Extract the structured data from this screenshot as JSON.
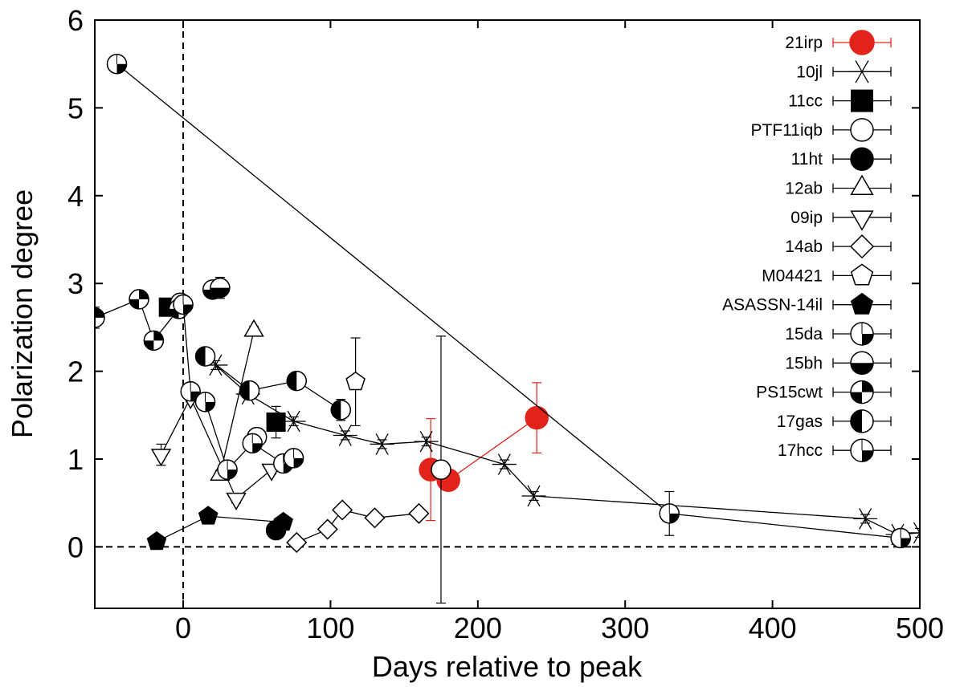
{
  "chart_data": {
    "type": "scatter",
    "xlabel": "Days relative to peak",
    "ylabel": "Polarization degree",
    "xlim": [
      -60,
      500
    ],
    "ylim": [
      -0.7,
      6
    ],
    "xticks": [
      0,
      100,
      200,
      300,
      400,
      500
    ],
    "yticks": [
      0,
      1,
      2,
      3,
      4,
      5,
      6
    ],
    "reference_lines": [
      {
        "axis": "x",
        "value": 0,
        "style": "dashed"
      },
      {
        "axis": "y",
        "value": 0,
        "style": "dashed"
      }
    ],
    "legend_position": "top-right",
    "grid": false,
    "series": [
      {
        "name": "21irp",
        "marker": "circle-red",
        "color": "#e2231a",
        "connected": true,
        "x": [
          168,
          180,
          240
        ],
        "y": [
          0.88,
          0.76,
          1.47
        ],
        "err": [
          0.58,
          0.08,
          0.4
        ]
      },
      {
        "name": "10jl",
        "marker": "asterisk",
        "color": "#000000",
        "connected": true,
        "x": [
          22,
          44,
          75,
          110,
          135,
          165,
          218,
          238,
          463,
          485,
          500
        ],
        "y": [
          2.07,
          1.74,
          1.43,
          1.27,
          1.17,
          1.2,
          0.94,
          0.58,
          0.32,
          0.14,
          0.16
        ],
        "err": [
          0.05,
          0.05,
          0.05,
          0.05,
          0.05,
          0.05,
          0.05,
          0.05,
          0.05,
          0.05,
          0.05
        ]
      },
      {
        "name": "11cc",
        "marker": "square-filled",
        "color": "#000000",
        "connected": false,
        "x": [
          -10,
          63
        ],
        "y": [
          2.73,
          1.42
        ],
        "err": [
          0.05,
          0.18
        ]
      },
      {
        "name": "PTF11iqb",
        "marker": "circle-open",
        "color": "#000000",
        "connected": false,
        "x": [
          -2,
          50,
          175
        ],
        "y": [
          2.78,
          1.25,
          0.88
        ],
        "err": [
          0.05,
          0.05,
          1.52
        ]
      },
      {
        "name": "11ht",
        "marker": "circle-filled",
        "color": "#000000",
        "connected": false,
        "x": [
          63
        ],
        "y": [
          0.19
        ],
        "err": [
          0.03
        ]
      },
      {
        "name": "12ab",
        "marker": "triangle-up",
        "color": "#000000",
        "connected": true,
        "x": [
          25,
          48
        ],
        "y": [
          0.82,
          2.46
        ],
        "err": [
          0.05,
          0.05
        ]
      },
      {
        "name": "09ip",
        "marker": "triangle-down",
        "color": "#000000",
        "connected": true,
        "x": [
          -15,
          5,
          36,
          60
        ],
        "y": [
          1.05,
          1.7,
          0.55,
          0.88
        ],
        "err": [
          0.12,
          0.05,
          0.05,
          0.05
        ]
      },
      {
        "name": "14ab",
        "marker": "diamond",
        "color": "#000000",
        "connected": true,
        "x": [
          77,
          98,
          108,
          130,
          160
        ],
        "y": [
          0.05,
          0.2,
          0.42,
          0.33,
          0.38
        ],
        "err": [
          0.04,
          0.04,
          0.06,
          0.06,
          0.06
        ]
      },
      {
        "name": "M04421",
        "marker": "pentagon-open",
        "color": "#000000",
        "connected": false,
        "x": [
          117
        ],
        "y": [
          1.88
        ],
        "err": [
          0.5
        ]
      },
      {
        "name": "ASASSN-14il",
        "marker": "pentagon-filled",
        "color": "#000000",
        "connected": true,
        "x": [
          -18,
          17,
          68
        ],
        "y": [
          0.06,
          0.35,
          0.28
        ],
        "err": [
          0.02,
          0.02,
          0.02
        ]
      },
      {
        "name": "15da",
        "marker": "quarter-1",
        "color": "#000000",
        "connected": true,
        "x": [
          -45,
          330,
          487
        ],
        "y": [
          5.5,
          0.38,
          0.1
        ],
        "err": [
          0.05,
          0.25,
          0.03
        ]
      },
      {
        "name": "15bh",
        "marker": "half-bottom",
        "color": "#000000",
        "connected": true,
        "x": [
          20,
          25
        ],
        "y": [
          2.93,
          2.95
        ],
        "err": [
          0.08,
          0.12
        ]
      },
      {
        "name": "PS15cwt",
        "marker": "quarter-2",
        "color": "#000000",
        "connected": true,
        "x": [
          -60,
          -30,
          -20,
          -3
        ],
        "y": [
          2.61,
          2.82,
          2.35,
          2.71
        ],
        "err": [
          0.12,
          0.1,
          0.05,
          0.1
        ]
      },
      {
        "name": "17gas",
        "marker": "half-left",
        "color": "#000000",
        "connected": true,
        "x": [
          15,
          45,
          77,
          107
        ],
        "y": [
          2.17,
          1.78,
          1.89,
          1.56
        ],
        "err": [
          0.05,
          0.05,
          0.05,
          0.12
        ]
      },
      {
        "name": "17hcc",
        "marker": "quarter-3",
        "color": "#000000",
        "connected": true,
        "x": [
          0,
          5,
          15,
          30,
          47,
          68,
          75
        ],
        "y": [
          2.76,
          1.77,
          1.65,
          0.88,
          1.18,
          0.95,
          1.01
        ],
        "err": [
          0.1,
          0.05,
          0.05,
          0.05,
          0.05,
          0.05,
          0.05
        ]
      }
    ]
  }
}
